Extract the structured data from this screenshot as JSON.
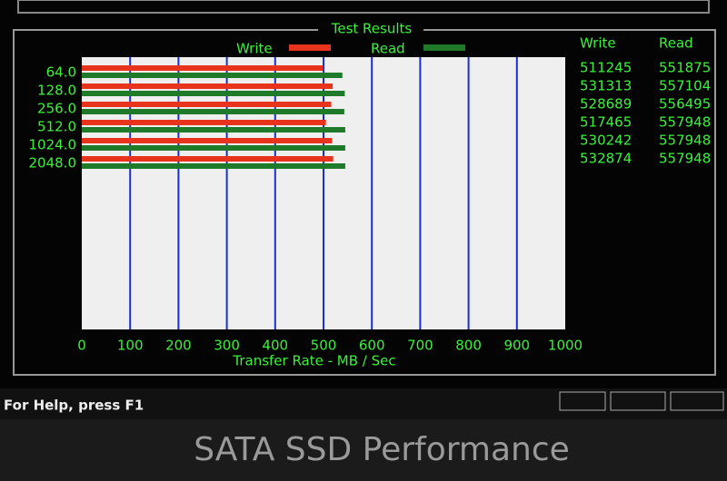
{
  "chart_data": {
    "type": "barh",
    "title": "Test Results",
    "categories": [
      "64.0",
      "128.0",
      "256.0",
      "512.0",
      "1024.0",
      "2048.0"
    ],
    "series": [
      {
        "name": "Write",
        "color": "#e8341c",
        "values": [
          499,
          519,
          516,
          505,
          518,
          520
        ]
      },
      {
        "name": "Read",
        "color": "#1f7a2a",
        "values": [
          539,
          544,
          543,
          545,
          545,
          545
        ]
      }
    ],
    "xlim": [
      0,
      1000
    ],
    "xticks": [
      0,
      100,
      200,
      300,
      400,
      500,
      600,
      700,
      800,
      900,
      1000
    ],
    "xlabel": "Transfer Rate - MB / Sec",
    "grid": true,
    "grid_color": "#1a2fd0"
  },
  "results_table": {
    "columns": [
      "Write",
      "Read"
    ],
    "rows": [
      [
        511245,
        551875
      ],
      [
        531313,
        557104
      ],
      [
        528689,
        556495
      ],
      [
        517465,
        557948
      ],
      [
        530242,
        557948
      ],
      [
        532874,
        557948
      ]
    ]
  },
  "status_bar": {
    "text": "For Help, press F1"
  },
  "caption": "SATA SSD Performance"
}
